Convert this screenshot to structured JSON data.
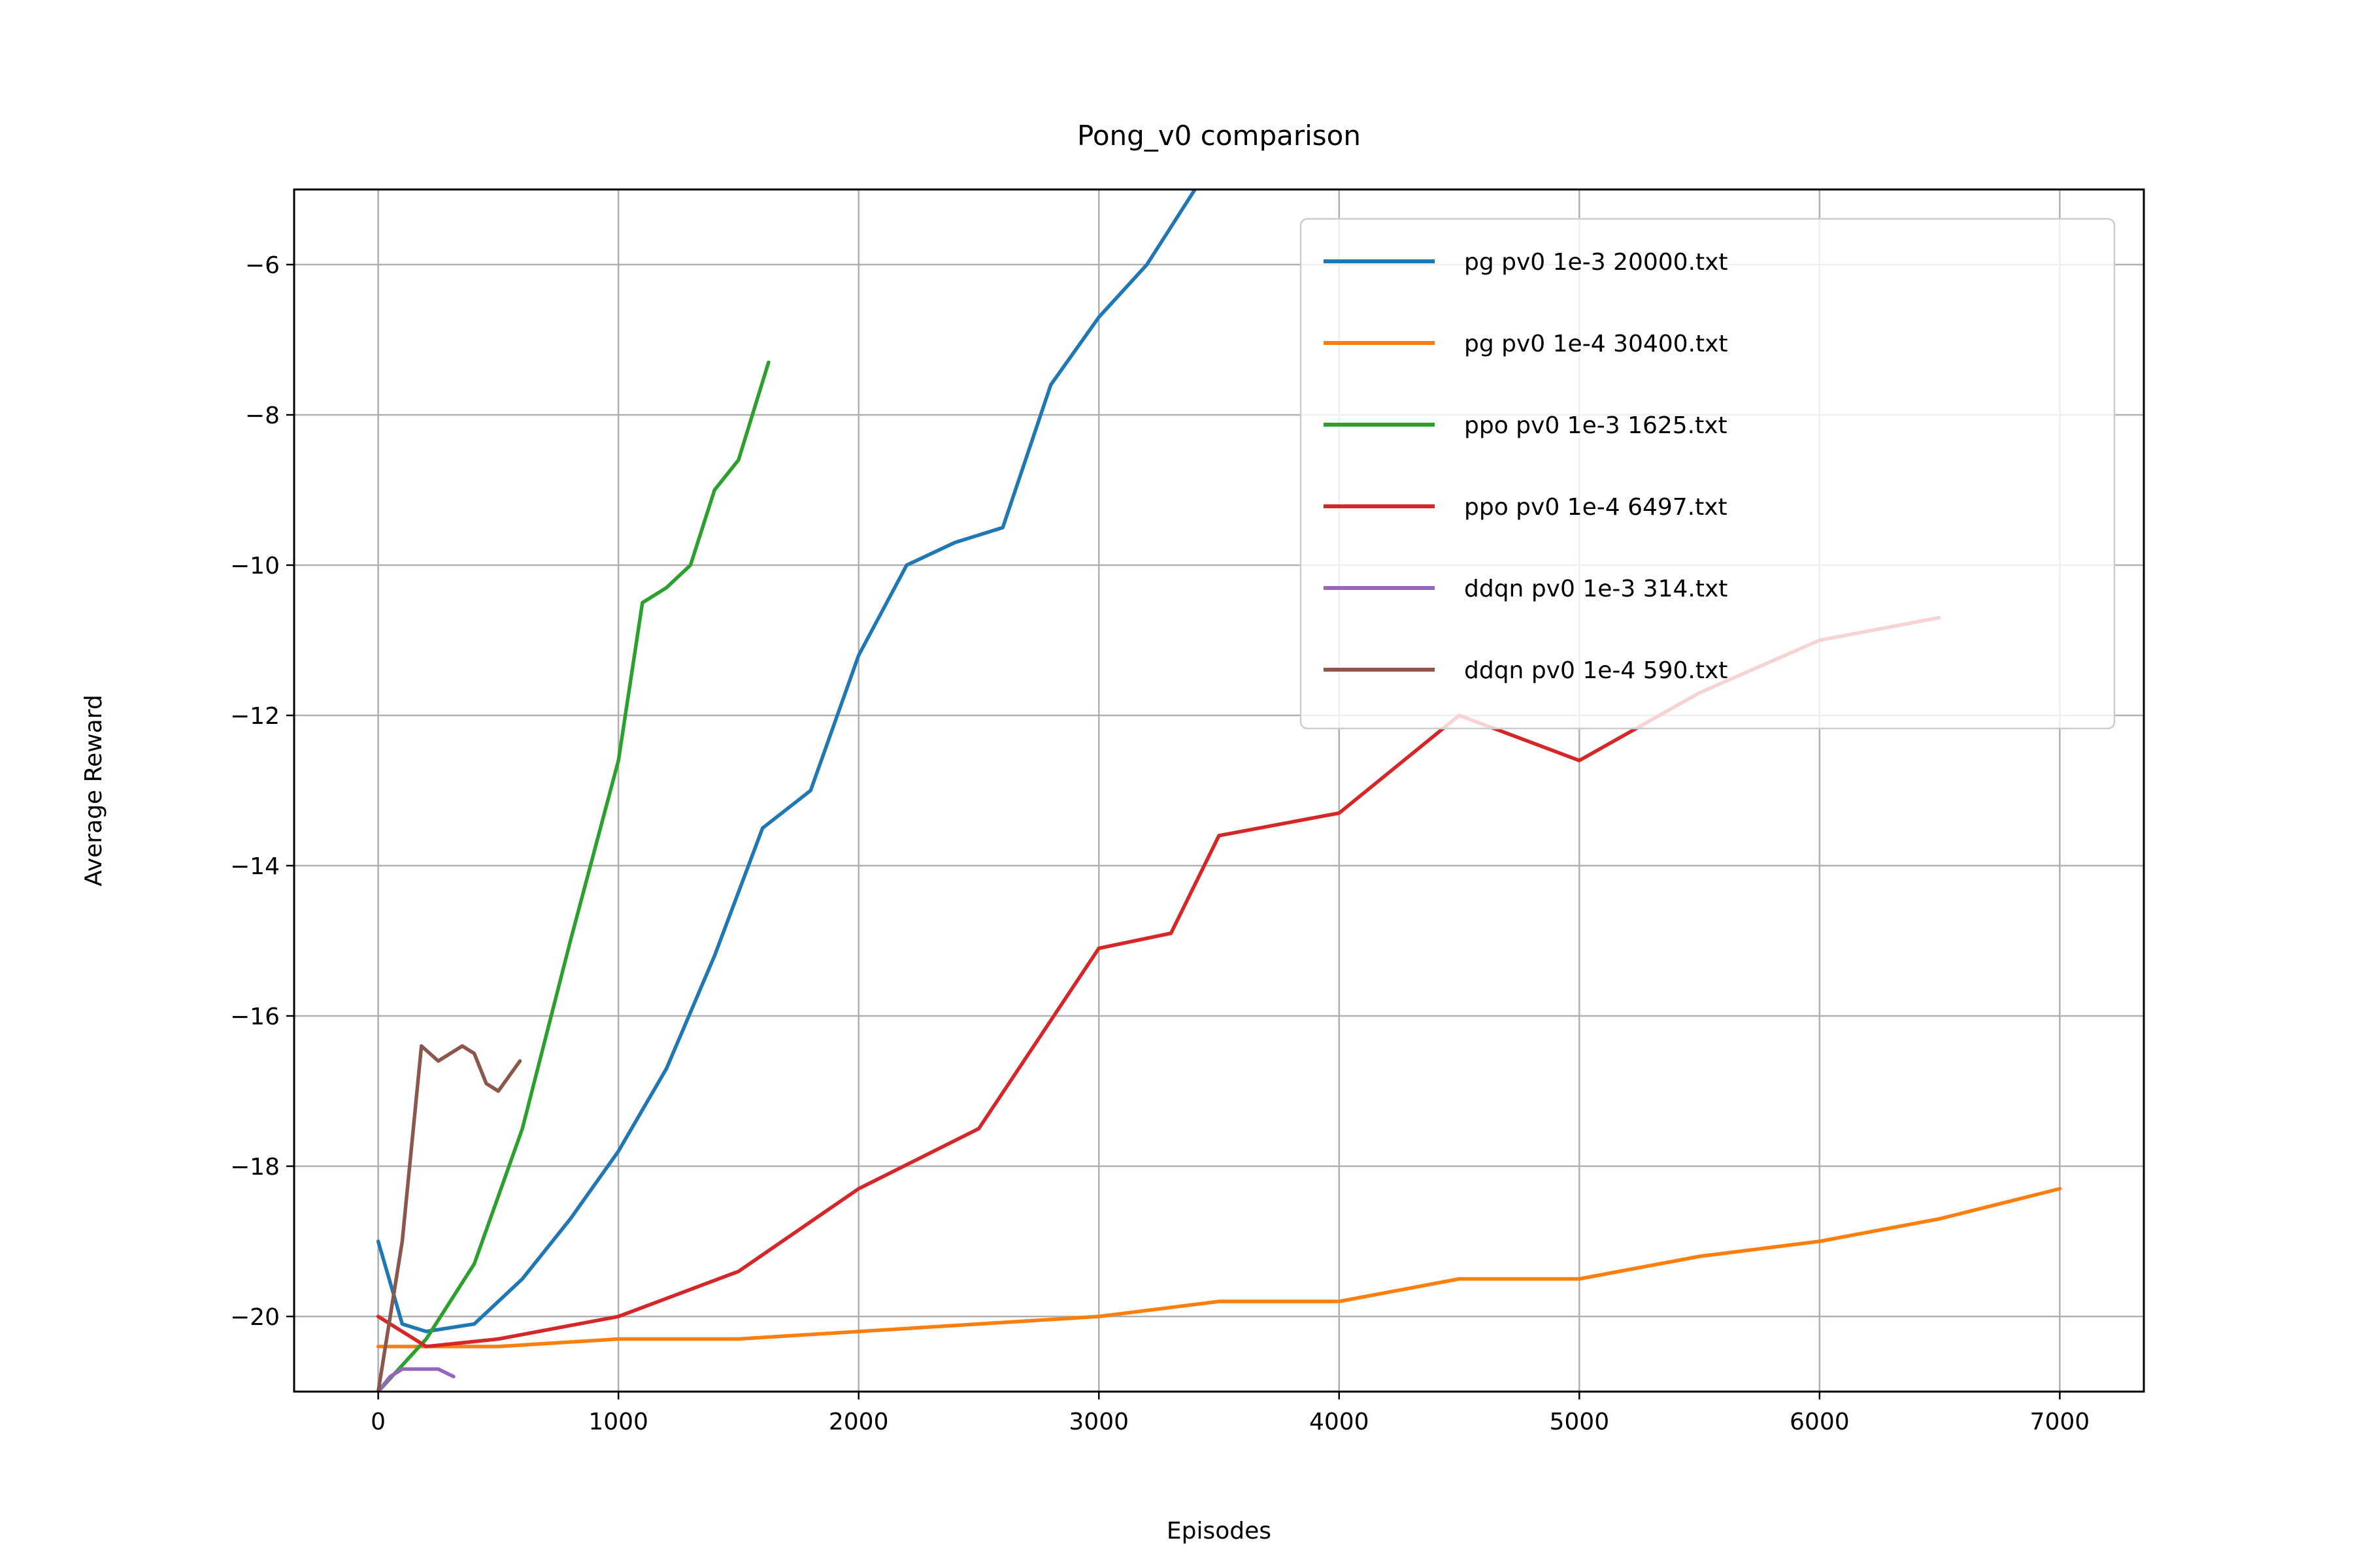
{
  "chart_data": {
    "type": "line",
    "title": "Pong_v0 comparison",
    "xlabel": "Episodes",
    "ylabel": "Average Reward",
    "xlim": [
      -350,
      7350
    ],
    "ylim": [
      -21.0,
      -5.0
    ],
    "xticks": [
      0,
      1000,
      2000,
      3000,
      4000,
      5000,
      6000,
      7000
    ],
    "xtick_labels": [
      "0",
      "1000",
      "2000",
      "3000",
      "4000",
      "5000",
      "6000",
      "7000"
    ],
    "yticks": [
      -20,
      -18,
      -16,
      -14,
      -12,
      -10,
      -8,
      -6
    ],
    "ytick_labels": [
      "−20",
      "−18",
      "−16",
      "−14",
      "−12",
      "−10",
      "−8",
      "−6"
    ],
    "grid": true,
    "legend_position": "top-right",
    "series": [
      {
        "name": "pg pv0 1e-3 20000.txt",
        "color": "#1f77b4",
        "points": [
          [
            0,
            -19.0
          ],
          [
            100,
            -20.1
          ],
          [
            200,
            -20.2
          ],
          [
            400,
            -20.1
          ],
          [
            600,
            -19.5
          ],
          [
            800,
            -18.7
          ],
          [
            1000,
            -17.8
          ],
          [
            1200,
            -16.7
          ],
          [
            1400,
            -15.2
          ],
          [
            1600,
            -13.5
          ],
          [
            1800,
            -13.0
          ],
          [
            2000,
            -11.2
          ],
          [
            2200,
            -10.0
          ],
          [
            2400,
            -9.7
          ],
          [
            2600,
            -9.5
          ],
          [
            2800,
            -7.6
          ],
          [
            3000,
            -6.7
          ],
          [
            3200,
            -6.0
          ],
          [
            3400,
            -5.0
          ]
        ]
      },
      {
        "name": "pg pv0 1e-4 30400.txt",
        "color": "#ff7f0e",
        "points": [
          [
            0,
            -20.4
          ],
          [
            500,
            -20.4
          ],
          [
            1000,
            -20.3
          ],
          [
            1500,
            -20.3
          ],
          [
            2000,
            -20.2
          ],
          [
            2500,
            -20.1
          ],
          [
            3000,
            -20.0
          ],
          [
            3500,
            -19.8
          ],
          [
            4000,
            -19.8
          ],
          [
            4500,
            -19.5
          ],
          [
            5000,
            -19.5
          ],
          [
            5500,
            -19.2
          ],
          [
            6000,
            -19.0
          ],
          [
            6500,
            -18.7
          ],
          [
            7000,
            -18.3
          ]
        ]
      },
      {
        "name": "ppo pv0 1e-3 1625.txt",
        "color": "#2ca02c",
        "points": [
          [
            0,
            -21.0
          ],
          [
            200,
            -20.3
          ],
          [
            400,
            -19.3
          ],
          [
            600,
            -17.5
          ],
          [
            800,
            -15.0
          ],
          [
            1000,
            -12.6
          ],
          [
            1100,
            -10.5
          ],
          [
            1200,
            -10.3
          ],
          [
            1300,
            -10.0
          ],
          [
            1400,
            -9.0
          ],
          [
            1500,
            -8.6
          ],
          [
            1625,
            -7.3
          ]
        ]
      },
      {
        "name": "ppo pv0 1e-4 6497.txt",
        "color": "#d62728",
        "points": [
          [
            0,
            -20.0
          ],
          [
            200,
            -20.4
          ],
          [
            500,
            -20.3
          ],
          [
            1000,
            -20.0
          ],
          [
            1500,
            -19.4
          ],
          [
            2000,
            -18.3
          ],
          [
            2500,
            -17.5
          ],
          [
            3000,
            -15.1
          ],
          [
            3300,
            -14.9
          ],
          [
            3500,
            -13.6
          ],
          [
            4000,
            -13.3
          ],
          [
            4500,
            -12.0
          ],
          [
            5000,
            -12.6
          ],
          [
            5500,
            -11.7
          ],
          [
            6000,
            -11.0
          ],
          [
            6497,
            -10.7
          ]
        ]
      },
      {
        "name": "ddqn pv0 1e-3 314.txt",
        "color": "#9467bd",
        "points": [
          [
            0,
            -21.0
          ],
          [
            50,
            -20.8
          ],
          [
            100,
            -20.7
          ],
          [
            150,
            -20.7
          ],
          [
            200,
            -20.7
          ],
          [
            250,
            -20.7
          ],
          [
            314,
            -20.8
          ]
        ]
      },
      {
        "name": "ddqn pv0 1e-4 590.txt",
        "color": "#8c564b",
        "points": [
          [
            0,
            -21.0
          ],
          [
            100,
            -19.0
          ],
          [
            180,
            -16.4
          ],
          [
            250,
            -16.6
          ],
          [
            300,
            -16.5
          ],
          [
            350,
            -16.4
          ],
          [
            400,
            -16.5
          ],
          [
            450,
            -16.9
          ],
          [
            500,
            -17.0
          ],
          [
            590,
            -16.6
          ]
        ]
      }
    ]
  }
}
